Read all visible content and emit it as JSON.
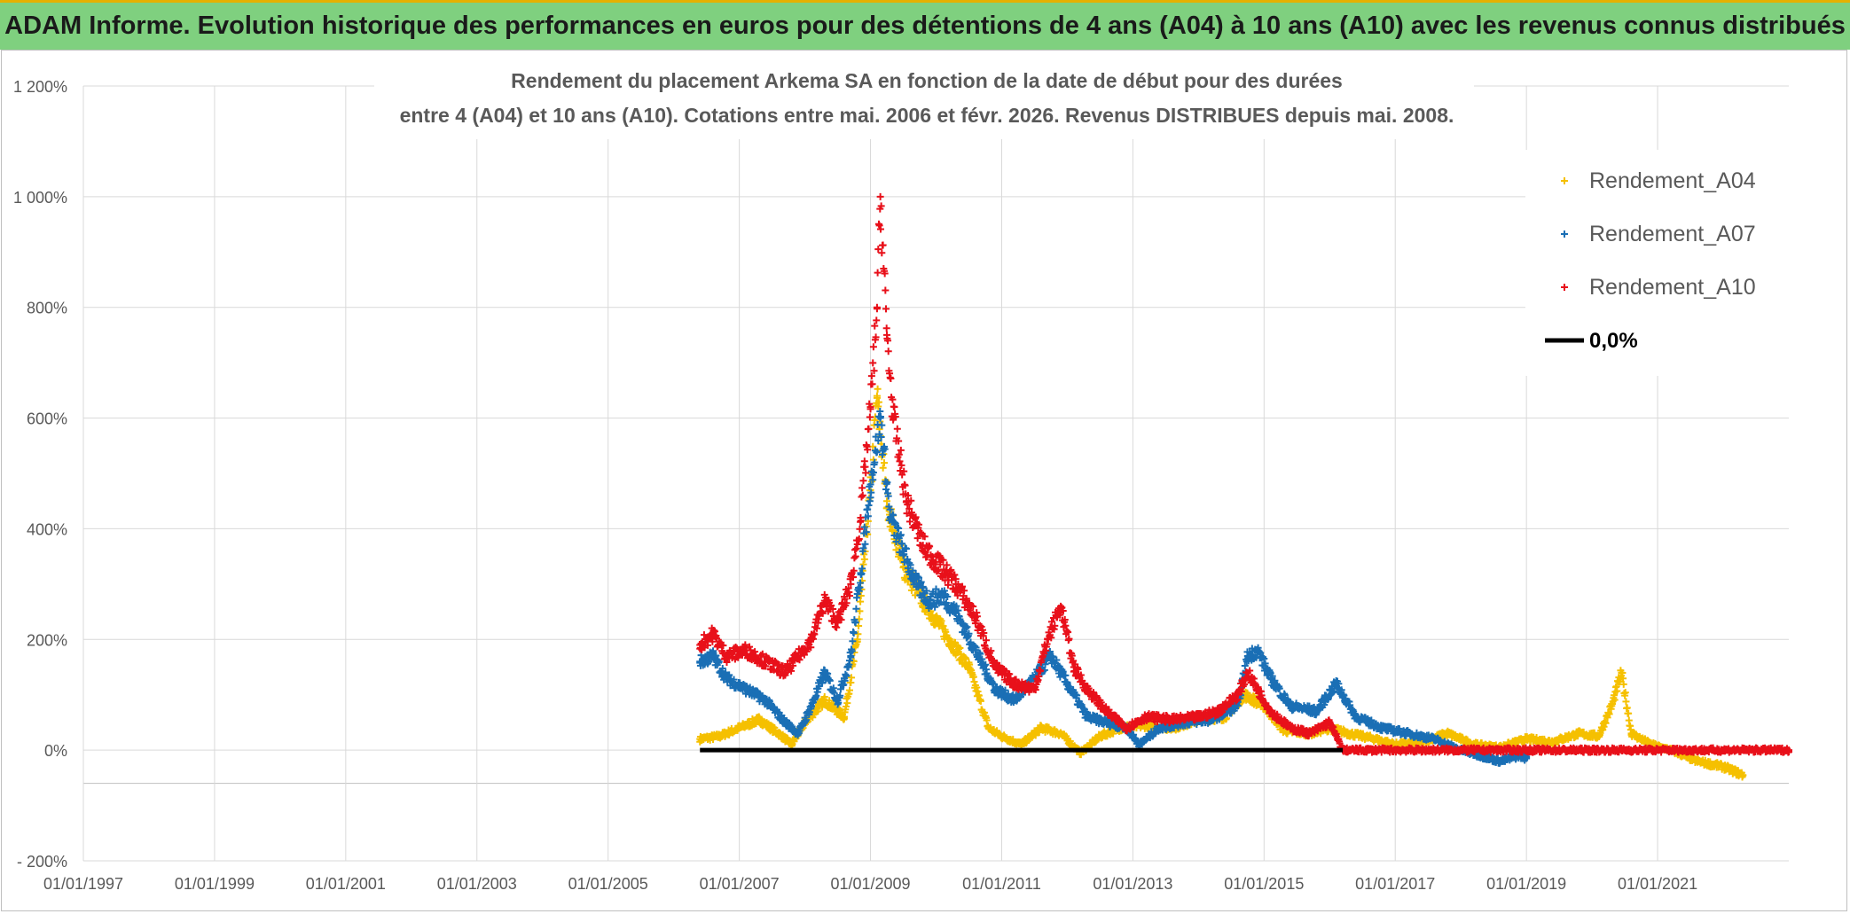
{
  "header": {
    "title": "ADAM Informe. Evolution historique des performances en euros pour des détentions de 4 ans (A04) à 10 ans (A10) avec les revenus connus distribués"
  },
  "colors": {
    "banner": "#7fd07f",
    "a04": "#f5c000",
    "a07": "#1a6fb5",
    "a10": "#e8101a",
    "zero": "#000000",
    "grid": "#d9d9d9"
  },
  "chart_data": {
    "type": "scatter",
    "title_line1": "Rendement du placement Arkema SA en fonction de la date de début pour des durées",
    "title_line2": "entre 4 (A04) et 10 ans (A10). Cotations entre mai. 2006 et févr. 2026. Revenus DISTRIBUES depuis mai. 2008.",
    "xlabel": "",
    "ylabel": "",
    "x_start_year": 1997,
    "x_end_year": 2023,
    "x_ticks": [
      "01/01/1997",
      "01/01/1999",
      "01/01/2001",
      "01/01/2003",
      "01/01/2005",
      "01/01/2007",
      "01/01/2009",
      "01/01/2011",
      "01/01/2013",
      "01/01/2015",
      "01/01/2017",
      "01/01/2019",
      "01/01/2021"
    ],
    "ylim": [
      -200,
      1200
    ],
    "y_ticks": [
      -200,
      0,
      200,
      400,
      600,
      800,
      1000,
      1200
    ],
    "y_tick_labels": [
      "- 200%",
      "0%",
      "200%",
      "400%",
      "600%",
      "800%",
      "1 000%",
      "1 200%"
    ],
    "legend": {
      "placement": "top-right",
      "items": [
        "Rendement_A04",
        "Rendement_A07",
        "Rendement_A10",
        "0,0%"
      ]
    },
    "series": [
      {
        "name": "Rendement_A04",
        "color": "#f5c000",
        "points": [
          [
            2006.4,
            20
          ],
          [
            2006.7,
            25
          ],
          [
            2007.0,
            40
          ],
          [
            2007.3,
            55
          ],
          [
            2007.6,
            30
          ],
          [
            2007.8,
            10
          ],
          [
            2008.0,
            50
          ],
          [
            2008.3,
            90
          ],
          [
            2008.6,
            60
          ],
          [
            2008.8,
            200
          ],
          [
            2009.0,
            470
          ],
          [
            2009.1,
            640
          ],
          [
            2009.25,
            450
          ],
          [
            2009.5,
            330
          ],
          [
            2009.8,
            270
          ],
          [
            2010.2,
            200
          ],
          [
            2010.5,
            150
          ],
          [
            2010.8,
            40
          ],
          [
            2011.0,
            25
          ],
          [
            2011.3,
            10
          ],
          [
            2011.6,
            40
          ],
          [
            2011.9,
            30
          ],
          [
            2012.2,
            -5
          ],
          [
            2012.5,
            25
          ],
          [
            2012.8,
            40
          ],
          [
            2013.2,
            45
          ],
          [
            2013.6,
            40
          ],
          [
            2014.0,
            55
          ],
          [
            2014.4,
            60
          ],
          [
            2014.7,
            100
          ],
          [
            2015.0,
            80
          ],
          [
            2015.3,
            35
          ],
          [
            2015.7,
            30
          ],
          [
            2016.0,
            40
          ],
          [
            2016.3,
            30
          ],
          [
            2016.7,
            20
          ],
          [
            2017.0,
            10
          ],
          [
            2017.4,
            15
          ],
          [
            2017.8,
            30
          ],
          [
            2018.2,
            10
          ],
          [
            2018.6,
            5
          ],
          [
            2019.0,
            20
          ],
          [
            2019.4,
            15
          ],
          [
            2019.8,
            30
          ],
          [
            2020.1,
            25
          ],
          [
            2020.3,
            80
          ],
          [
            2020.45,
            140
          ],
          [
            2020.6,
            30
          ],
          [
            2020.9,
            10
          ],
          [
            2021.2,
            0
          ],
          [
            2021.6,
            -20
          ],
          [
            2022.0,
            -30
          ],
          [
            2022.3,
            -45
          ]
        ]
      },
      {
        "name": "Rendement_A07",
        "color": "#1a6fb5",
        "points": [
          [
            2006.4,
            160
          ],
          [
            2006.6,
            170
          ],
          [
            2006.8,
            130
          ],
          [
            2007.1,
            110
          ],
          [
            2007.4,
            90
          ],
          [
            2007.7,
            50
          ],
          [
            2007.9,
            30
          ],
          [
            2008.1,
            80
          ],
          [
            2008.3,
            140
          ],
          [
            2008.5,
            90
          ],
          [
            2008.7,
            170
          ],
          [
            2008.85,
            320
          ],
          [
            2009.0,
            480
          ],
          [
            2009.15,
            600
          ],
          [
            2009.3,
            420
          ],
          [
            2009.5,
            360
          ],
          [
            2009.7,
            300
          ],
          [
            2009.9,
            270
          ],
          [
            2010.1,
            280
          ],
          [
            2010.3,
            250
          ],
          [
            2010.6,
            180
          ],
          [
            2010.9,
            110
          ],
          [
            2011.2,
            90
          ],
          [
            2011.5,
            130
          ],
          [
            2011.75,
            170
          ],
          [
            2012.0,
            120
          ],
          [
            2012.3,
            60
          ],
          [
            2012.6,
            50
          ],
          [
            2012.9,
            40
          ],
          [
            2013.1,
            10
          ],
          [
            2013.4,
            40
          ],
          [
            2013.8,
            50
          ],
          [
            2014.2,
            55
          ],
          [
            2014.6,
            80
          ],
          [
            2014.75,
            170
          ],
          [
            2014.9,
            180
          ],
          [
            2015.1,
            130
          ],
          [
            2015.4,
            80
          ],
          [
            2015.8,
            70
          ],
          [
            2016.1,
            120
          ],
          [
            2016.4,
            60
          ],
          [
            2016.8,
            40
          ],
          [
            2017.2,
            30
          ],
          [
            2017.6,
            20
          ],
          [
            2018.0,
            0
          ],
          [
            2018.3,
            -10
          ],
          [
            2018.6,
            -20
          ],
          [
            2018.9,
            -10
          ],
          [
            2019.0,
            -15
          ]
        ]
      },
      {
        "name": "Rendement_A10",
        "color": "#e8101a",
        "points": [
          [
            2006.4,
            190
          ],
          [
            2006.6,
            210
          ],
          [
            2006.8,
            170
          ],
          [
            2007.1,
            180
          ],
          [
            2007.4,
            160
          ],
          [
            2007.7,
            140
          ],
          [
            2007.9,
            170
          ],
          [
            2008.1,
            200
          ],
          [
            2008.3,
            270
          ],
          [
            2008.5,
            230
          ],
          [
            2008.7,
            300
          ],
          [
            2008.85,
            420
          ],
          [
            2009.0,
            620
          ],
          [
            2009.1,
            800
          ],
          [
            2009.15,
            1000
          ],
          [
            2009.25,
            750
          ],
          [
            2009.35,
            600
          ],
          [
            2009.55,
            450
          ],
          [
            2009.8,
            370
          ],
          [
            2010.0,
            340
          ],
          [
            2010.3,
            300
          ],
          [
            2010.6,
            240
          ],
          [
            2010.9,
            150
          ],
          [
            2011.2,
            120
          ],
          [
            2011.5,
            110
          ],
          [
            2011.7,
            200
          ],
          [
            2011.9,
            260
          ],
          [
            2012.1,
            150
          ],
          [
            2012.3,
            110
          ],
          [
            2012.6,
            70
          ],
          [
            2012.9,
            40
          ],
          [
            2013.2,
            60
          ],
          [
            2013.6,
            55
          ],
          [
            2014.0,
            60
          ],
          [
            2014.3,
            70
          ],
          [
            2014.6,
            100
          ],
          [
            2014.75,
            140
          ],
          [
            2014.9,
            110
          ],
          [
            2015.1,
            70
          ],
          [
            2015.4,
            40
          ],
          [
            2015.7,
            30
          ],
          [
            2016.0,
            50
          ],
          [
            2016.2,
            0
          ],
          [
            2017.0,
            0
          ],
          [
            2018.0,
            0
          ],
          [
            2019.0,
            0
          ],
          [
            2020.0,
            0
          ],
          [
            2021.0,
            0
          ],
          [
            2022.0,
            0
          ],
          [
            2023.0,
            0
          ]
        ]
      },
      {
        "name": "0,0%",
        "color": "#000000",
        "points": [
          [
            2006.4,
            0
          ],
          [
            2016.2,
            0
          ]
        ]
      }
    ]
  }
}
